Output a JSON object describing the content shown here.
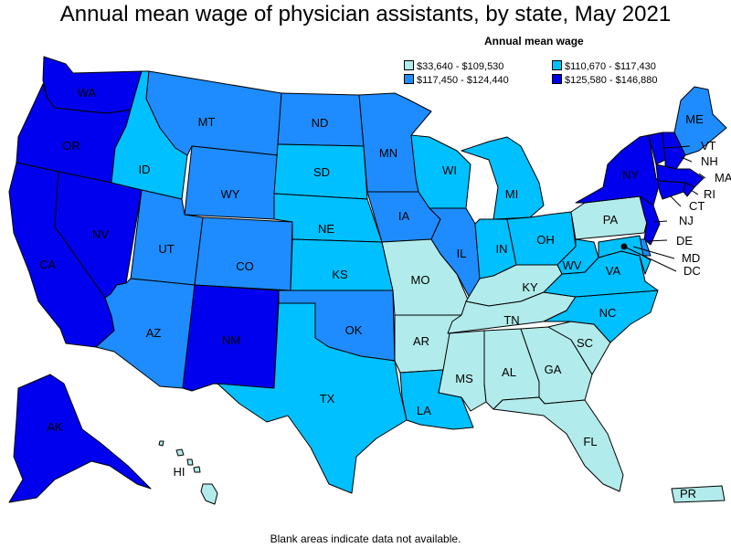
{
  "title": "Annual mean wage of physician assistants, by state, May 2021",
  "legend": {
    "title": "Annual mean wage",
    "bins": [
      {
        "label": "$33,640 - $109,530",
        "color": "#b2ebeb"
      },
      {
        "label": "$110,670 - $117,430",
        "color": "#00c0ff"
      },
      {
        "label": "$117,450 - $124,440",
        "color": "#1e8cff"
      },
      {
        "label": "$125,580 - $146,880",
        "color": "#0000ee"
      }
    ]
  },
  "footnote": "Blank areas indicate data not available.",
  "states": [
    {
      "abbr": "WA",
      "bin": 3
    },
    {
      "abbr": "OR",
      "bin": 3
    },
    {
      "abbr": "CA",
      "bin": 3
    },
    {
      "abbr": "NV",
      "bin": 3
    },
    {
      "abbr": "ID",
      "bin": 1
    },
    {
      "abbr": "MT",
      "bin": 2
    },
    {
      "abbr": "WY",
      "bin": 2
    },
    {
      "abbr": "UT",
      "bin": 2
    },
    {
      "abbr": "CO",
      "bin": 2
    },
    {
      "abbr": "AZ",
      "bin": 2
    },
    {
      "abbr": "NM",
      "bin": 3
    },
    {
      "abbr": "ND",
      "bin": 2
    },
    {
      "abbr": "SD",
      "bin": 1
    },
    {
      "abbr": "NE",
      "bin": 1
    },
    {
      "abbr": "KS",
      "bin": 1
    },
    {
      "abbr": "OK",
      "bin": 2
    },
    {
      "abbr": "TX",
      "bin": 1
    },
    {
      "abbr": "MN",
      "bin": 2
    },
    {
      "abbr": "IA",
      "bin": 2
    },
    {
      "abbr": "MO",
      "bin": 0
    },
    {
      "abbr": "AR",
      "bin": 0
    },
    {
      "abbr": "LA",
      "bin": 1
    },
    {
      "abbr": "WI",
      "bin": 1
    },
    {
      "abbr": "IL",
      "bin": 2
    },
    {
      "abbr": "MI",
      "bin": 1
    },
    {
      "abbr": "IN",
      "bin": 1
    },
    {
      "abbr": "OH",
      "bin": 1
    },
    {
      "abbr": "KY",
      "bin": 0
    },
    {
      "abbr": "TN",
      "bin": 0
    },
    {
      "abbr": "MS",
      "bin": 0
    },
    {
      "abbr": "AL",
      "bin": 0
    },
    {
      "abbr": "GA",
      "bin": 0
    },
    {
      "abbr": "FL",
      "bin": 0
    },
    {
      "abbr": "SC",
      "bin": 0
    },
    {
      "abbr": "NC",
      "bin": 1
    },
    {
      "abbr": "VA",
      "bin": 1
    },
    {
      "abbr": "WV",
      "bin": 1
    },
    {
      "abbr": "PA",
      "bin": 0
    },
    {
      "abbr": "NY",
      "bin": 3
    },
    {
      "abbr": "ME",
      "bin": 2
    },
    {
      "abbr": "VT",
      "bin": 3
    },
    {
      "abbr": "NH",
      "bin": 3
    },
    {
      "abbr": "MA",
      "bin": 3
    },
    {
      "abbr": "RI",
      "bin": 3
    },
    {
      "abbr": "CT",
      "bin": 3
    },
    {
      "abbr": "NJ",
      "bin": 3
    },
    {
      "abbr": "DE",
      "bin": 2
    },
    {
      "abbr": "MD",
      "bin": 1
    },
    {
      "abbr": "DC",
      "bin": null
    },
    {
      "abbr": "AK",
      "bin": 3
    },
    {
      "abbr": "HI",
      "bin": 0
    },
    {
      "abbr": "PR",
      "bin": 0
    }
  ]
}
